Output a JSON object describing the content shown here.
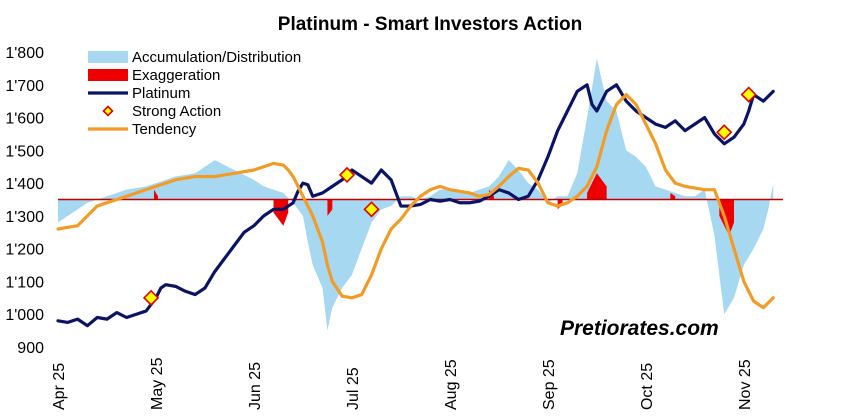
{
  "chart_data": {
    "type": "line",
    "title": "Platinum - Smart Investors Action",
    "watermark": "Pretiorates.com",
    "ylim": [
      900,
      1800
    ],
    "yticks": [
      900,
      1000,
      1100,
      1200,
      1300,
      1400,
      1500,
      1600,
      1700,
      1800
    ],
    "ytick_labels": [
      "900",
      "1'000",
      "1'100",
      "1'200",
      "1'300",
      "1'400",
      "1'500",
      "1'600",
      "1'700",
      "1'800"
    ],
    "xlim": [
      0,
      7.4
    ],
    "xtick_labels": [
      "Apr 25",
      "May 25",
      "Jun 25",
      "Jul 25",
      "Aug 25",
      "Sep 25",
      "Oct 25",
      "Nov 25"
    ],
    "baseline": 1350,
    "colors": {
      "accumulation": "#a7d8f2",
      "exaggeration": "#ee0000",
      "platinum": "#0b1464",
      "tendency": "#f29b26",
      "baseline": "#c00000",
      "marker_fill": "#ffff00",
      "marker_edge": "#e00000"
    },
    "legend": [
      {
        "key": "accumulation",
        "label": "Accumulation/Distribution",
        "style": "area"
      },
      {
        "key": "exaggeration",
        "label": "Exaggeration",
        "style": "area"
      },
      {
        "key": "platinum",
        "label": "Platinum",
        "style": "line"
      },
      {
        "key": "strong",
        "label": "Strong Action",
        "style": "marker"
      },
      {
        "key": "tendency",
        "label": "Tendency",
        "style": "line"
      }
    ],
    "series": [
      {
        "name": "Platinum",
        "x": [
          0,
          0.1,
          0.2,
          0.3,
          0.4,
          0.5,
          0.6,
          0.7,
          0.8,
          0.9,
          1.0,
          1.05,
          1.1,
          1.2,
          1.3,
          1.4,
          1.5,
          1.6,
          1.7,
          1.8,
          1.9,
          2.0,
          2.1,
          2.2,
          2.3,
          2.4,
          2.45,
          2.5,
          2.55,
          2.6,
          2.7,
          2.8,
          2.9,
          3.0,
          3.1,
          3.2,
          3.3,
          3.4,
          3.5,
          3.6,
          3.7,
          3.8,
          3.9,
          4.0,
          4.1,
          4.2,
          4.3,
          4.4,
          4.5,
          4.6,
          4.7,
          4.8,
          4.9,
          5.0,
          5.1,
          5.2,
          5.3,
          5.4,
          5.45,
          5.5,
          5.6,
          5.7,
          5.8,
          5.9,
          6.0,
          6.1,
          6.2,
          6.3,
          6.4,
          6.5,
          6.6,
          6.7,
          6.8,
          6.9,
          7.0,
          7.05,
          7.1,
          7.2,
          7.3
        ],
        "values": [
          980,
          975,
          985,
          965,
          990,
          985,
          1005,
          990,
          1000,
          1010,
          1050,
          1080,
          1090,
          1085,
          1070,
          1060,
          1080,
          1130,
          1170,
          1210,
          1250,
          1270,
          1300,
          1320,
          1320,
          1340,
          1375,
          1400,
          1395,
          1360,
          1370,
          1390,
          1410,
          1440,
          1420,
          1400,
          1440,
          1410,
          1330,
          1330,
          1335,
          1350,
          1345,
          1350,
          1340,
          1340,
          1345,
          1360,
          1380,
          1370,
          1350,
          1360,
          1410,
          1480,
          1560,
          1620,
          1680,
          1700,
          1640,
          1620,
          1680,
          1700,
          1650,
          1620,
          1600,
          1580,
          1570,
          1590,
          1560,
          1580,
          1600,
          1550,
          1520,
          1540,
          1580,
          1620,
          1670,
          1650,
          1680
        ]
      },
      {
        "name": "Tendency",
        "x": [
          0,
          0.2,
          0.3,
          0.4,
          0.5,
          0.6,
          0.7,
          0.8,
          0.9,
          1.0,
          1.2,
          1.4,
          1.6,
          1.8,
          2.0,
          2.1,
          2.2,
          2.3,
          2.35,
          2.4,
          2.5,
          2.6,
          2.7,
          2.75,
          2.8,
          2.9,
          3.0,
          3.1,
          3.2,
          3.3,
          3.4,
          3.5,
          3.6,
          3.7,
          3.8,
          3.9,
          4.0,
          4.1,
          4.2,
          4.3,
          4.4,
          4.5,
          4.6,
          4.7,
          4.8,
          4.9,
          5.0,
          5.1,
          5.2,
          5.3,
          5.4,
          5.5,
          5.6,
          5.7,
          5.8,
          5.9,
          6.0,
          6.1,
          6.2,
          6.3,
          6.4,
          6.5,
          6.6,
          6.7,
          6.8,
          6.9,
          7.0,
          7.1,
          7.2,
          7.3
        ],
        "values": [
          1260,
          1270,
          1300,
          1330,
          1340,
          1350,
          1360,
          1370,
          1380,
          1390,
          1410,
          1420,
          1420,
          1430,
          1440,
          1450,
          1460,
          1455,
          1440,
          1420,
          1360,
          1300,
          1220,
          1150,
          1100,
          1055,
          1050,
          1060,
          1120,
          1200,
          1260,
          1290,
          1330,
          1360,
          1380,
          1390,
          1380,
          1375,
          1370,
          1360,
          1365,
          1390,
          1420,
          1445,
          1440,
          1400,
          1340,
          1330,
          1340,
          1360,
          1390,
          1450,
          1560,
          1640,
          1670,
          1640,
          1580,
          1520,
          1440,
          1400,
          1390,
          1385,
          1380,
          1380,
          1300,
          1200,
          1100,
          1040,
          1020,
          1050
        ]
      },
      {
        "name": "Accumulation/Distribution",
        "x": [
          0,
          0.2,
          0.3,
          0.5,
          0.7,
          0.9,
          1.0,
          1.2,
          1.4,
          1.6,
          1.8,
          2.0,
          2.1,
          2.2,
          2.3,
          2.4,
          2.5,
          2.55,
          2.6,
          2.7,
          2.75,
          2.8,
          2.9,
          3.0,
          3.1,
          3.2,
          3.3,
          3.4,
          3.5,
          3.6,
          3.7,
          3.8,
          3.9,
          4.0,
          4.1,
          4.2,
          4.3,
          4.4,
          4.5,
          4.6,
          4.7,
          4.8,
          4.9,
          5.0,
          5.1,
          5.2,
          5.3,
          5.4,
          5.5,
          5.6,
          5.7,
          5.8,
          5.9,
          6.0,
          6.1,
          6.2,
          6.3,
          6.4,
          6.5,
          6.6,
          6.7,
          6.8,
          6.9,
          7.0,
          7.1,
          7.2,
          7.25,
          7.3
        ],
        "values": [
          1280,
          1320,
          1340,
          1360,
          1380,
          1390,
          1400,
          1420,
          1430,
          1470,
          1440,
          1410,
          1390,
          1380,
          1370,
          1340,
          1300,
          1220,
          1150,
          1080,
          950,
          1020,
          1080,
          1120,
          1200,
          1280,
          1320,
          1330,
          1360,
          1360,
          1350,
          1360,
          1380,
          1380,
          1370,
          1370,
          1380,
          1390,
          1420,
          1470,
          1440,
          1400,
          1380,
          1340,
          1360,
          1360,
          1430,
          1600,
          1780,
          1650,
          1620,
          1500,
          1480,
          1450,
          1390,
          1380,
          1370,
          1360,
          1360,
          1380,
          1240,
          1000,
          1050,
          1150,
          1200,
          1260,
          1320,
          1400
        ]
      },
      {
        "name": "Exaggeration",
        "segments": [
          [
            {
              "x": 0.98,
              "y": 1380
            },
            {
              "x": 1.02,
              "y": 1360
            }
          ],
          [
            {
              "x": 2.2,
              "y": 1310
            },
            {
              "x": 2.3,
              "y": 1270
            },
            {
              "x": 2.35,
              "y": 1310
            }
          ],
          [
            {
              "x": 2.75,
              "y": 1300
            },
            {
              "x": 2.8,
              "y": 1320
            }
          ],
          [
            {
              "x": 4.4,
              "y": 1380
            },
            {
              "x": 4.45,
              "y": 1360
            }
          ],
          [
            {
              "x": 5.1,
              "y": 1320
            },
            {
              "x": 5.15,
              "y": 1335
            }
          ],
          [
            {
              "x": 5.4,
              "y": 1370
            },
            {
              "x": 5.5,
              "y": 1430
            },
            {
              "x": 5.6,
              "y": 1390
            }
          ],
          [
            {
              "x": 6.25,
              "y": 1370
            },
            {
              "x": 6.3,
              "y": 1360
            }
          ],
          [
            {
              "x": 6.75,
              "y": 1300
            },
            {
              "x": 6.85,
              "y": 1240
            },
            {
              "x": 6.9,
              "y": 1280
            }
          ]
        ]
      },
      {
        "name": "Strong Action",
        "x": [
          0.95,
          2.95,
          3.2,
          6.8,
          7.05
        ],
        "values": [
          1050,
          1425,
          1320,
          1555,
          1670
        ]
      }
    ]
  }
}
